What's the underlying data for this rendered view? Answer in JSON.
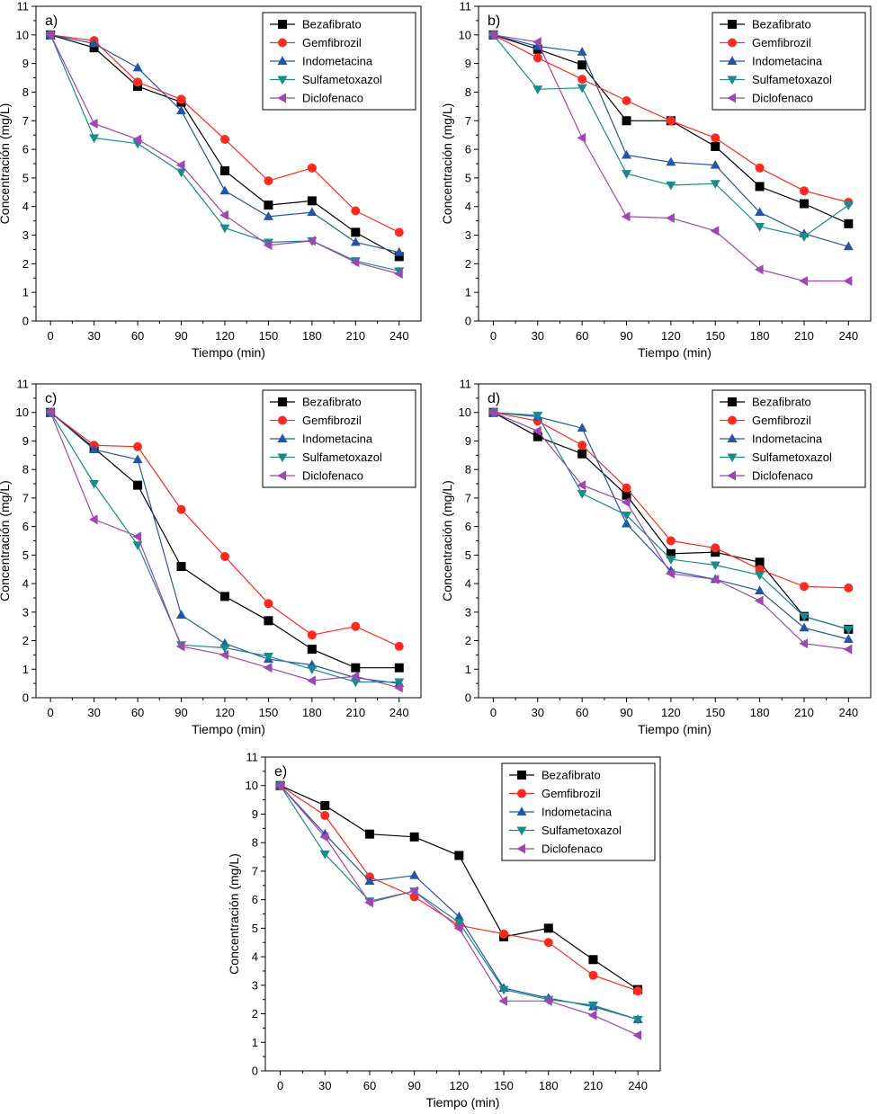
{
  "figure": {
    "panels": [
      "a)",
      "b)",
      "c)",
      "d)",
      "e)"
    ]
  },
  "chart_data": [
    {
      "type": "line",
      "panel_label": "a)",
      "xlabel": "Tiempo (min)",
      "ylabel": "Concentración (mg/L)",
      "x": [
        0,
        30,
        60,
        90,
        120,
        150,
        180,
        210,
        240
      ],
      "xlim": [
        -10,
        255
      ],
      "ylim": [
        0,
        11
      ],
      "xticks": [
        "0",
        "30",
        "60",
        "90",
        "120",
        "150",
        "180",
        "210",
        "240"
      ],
      "yticks": [
        "0",
        "1",
        "2",
        "3",
        "4",
        "5",
        "6",
        "7",
        "8",
        "9",
        "10",
        "11"
      ],
      "legend_position": "top-right",
      "grid": false,
      "series": [
        {
          "name": "Bezafibrato",
          "color": "#000000",
          "marker": "square",
          "values": [
            10.0,
            9.55,
            8.2,
            7.65,
            5.25,
            4.05,
            4.2,
            3.1,
            2.25
          ]
        },
        {
          "name": "Gemfibrozil",
          "color": "#ff2a1f",
          "marker": "circle",
          "values": [
            10.0,
            9.8,
            8.35,
            7.75,
            6.35,
            4.9,
            5.35,
            3.85,
            3.1
          ]
        },
        {
          "name": "Indometacina",
          "color": "#2456a8",
          "marker": "triangle-up",
          "values": [
            10.0,
            9.7,
            8.85,
            7.35,
            4.55,
            3.65,
            3.8,
            2.75,
            2.4
          ]
        },
        {
          "name": "Sulfametoxazol",
          "color": "#1b8a8a",
          "marker": "triangle-down",
          "values": [
            10.0,
            6.4,
            6.2,
            5.2,
            3.25,
            2.75,
            2.8,
            2.1,
            1.75
          ]
        },
        {
          "name": "Diclofenaco",
          "color": "#a045b5",
          "marker": "triangle-left",
          "values": [
            10.0,
            6.9,
            6.35,
            5.45,
            3.7,
            2.65,
            2.8,
            2.05,
            1.65
          ]
        }
      ]
    },
    {
      "type": "line",
      "panel_label": "b)",
      "xlabel": "Tiempo (min)",
      "ylabel": "Concentración (mg/L)",
      "x": [
        0,
        30,
        60,
        90,
        120,
        150,
        180,
        210,
        240
      ],
      "xlim": [
        -10,
        255
      ],
      "ylim": [
        0,
        11
      ],
      "xticks": [
        "0",
        "30",
        "60",
        "90",
        "120",
        "150",
        "180",
        "210",
        "240"
      ],
      "yticks": [
        "0",
        "1",
        "2",
        "3",
        "4",
        "5",
        "6",
        "7",
        "8",
        "9",
        "10",
        "11"
      ],
      "legend_position": "top-right",
      "grid": false,
      "series": [
        {
          "name": "Bezafibrato",
          "color": "#000000",
          "marker": "square",
          "values": [
            10.0,
            9.5,
            8.95,
            7.0,
            7.0,
            6.1,
            4.7,
            4.1,
            3.4
          ]
        },
        {
          "name": "Gemfibrozil",
          "color": "#ff2a1f",
          "marker": "circle",
          "values": [
            10.0,
            9.2,
            8.45,
            7.7,
            7.0,
            6.4,
            5.35,
            4.55,
            4.15
          ]
        },
        {
          "name": "Indometacina",
          "color": "#2456a8",
          "marker": "triangle-up",
          "values": [
            10.0,
            9.6,
            9.4,
            5.8,
            5.55,
            5.45,
            3.8,
            3.05,
            2.6
          ]
        },
        {
          "name": "Sulfametoxazol",
          "color": "#1b8a8a",
          "marker": "triangle-down",
          "values": [
            10.0,
            8.1,
            8.15,
            5.15,
            4.75,
            4.8,
            3.3,
            2.95,
            4.05
          ]
        },
        {
          "name": "Diclofenaco",
          "color": "#a045b5",
          "marker": "triangle-left",
          "values": [
            10.0,
            9.75,
            6.4,
            3.65,
            3.6,
            3.15,
            1.8,
            1.4,
            1.4
          ]
        }
      ]
    },
    {
      "type": "line",
      "panel_label": "c)",
      "xlabel": "Tiempo (min)",
      "ylabel": "Concentración (mg/L)",
      "x": [
        0,
        30,
        60,
        90,
        120,
        150,
        180,
        210,
        240
      ],
      "xlim": [
        -10,
        255
      ],
      "ylim": [
        0,
        11
      ],
      "xticks": [
        "0",
        "30",
        "60",
        "90",
        "120",
        "150",
        "180",
        "210",
        "240"
      ],
      "yticks": [
        "0",
        "1",
        "2",
        "3",
        "4",
        "5",
        "6",
        "7",
        "8",
        "9",
        "10",
        "11"
      ],
      "legend_position": "top-right",
      "grid": false,
      "series": [
        {
          "name": "Bezafibrato",
          "color": "#000000",
          "marker": "square",
          "values": [
            10.0,
            8.75,
            7.45,
            4.6,
            3.55,
            2.7,
            1.7,
            1.05,
            1.05
          ]
        },
        {
          "name": "Gemfibrozil",
          "color": "#ff2a1f",
          "marker": "circle",
          "values": [
            10.0,
            8.85,
            8.8,
            6.6,
            4.95,
            3.3,
            2.2,
            2.5,
            1.8
          ]
        },
        {
          "name": "Indometacina",
          "color": "#2456a8",
          "marker": "triangle-up",
          "values": [
            10.0,
            8.7,
            8.35,
            2.9,
            1.9,
            1.35,
            1.15,
            0.7,
            0.5
          ]
        },
        {
          "name": "Sulfametoxazol",
          "color": "#1b8a8a",
          "marker": "triangle-down",
          "values": [
            10.0,
            7.5,
            5.35,
            1.85,
            1.75,
            1.45,
            1.0,
            0.55,
            0.55
          ]
        },
        {
          "name": "Diclofenaco",
          "color": "#a045b5",
          "marker": "triangle-left",
          "values": [
            10.0,
            6.25,
            5.65,
            1.8,
            1.5,
            1.05,
            0.6,
            0.75,
            0.35
          ]
        }
      ]
    },
    {
      "type": "line",
      "panel_label": "d)",
      "xlabel": "Tiempo (min)",
      "ylabel": "Concentración (mg/L)",
      "x": [
        0,
        30,
        60,
        90,
        120,
        150,
        180,
        210,
        240
      ],
      "xlim": [
        -10,
        255
      ],
      "ylim": [
        0,
        11
      ],
      "xticks": [
        "0",
        "30",
        "60",
        "90",
        "120",
        "150",
        "180",
        "210",
        "240"
      ],
      "yticks": [
        "0",
        "1",
        "2",
        "3",
        "4",
        "5",
        "6",
        "7",
        "8",
        "9",
        "10",
        "11"
      ],
      "legend_position": "top-right",
      "grid": false,
      "series": [
        {
          "name": "Bezafibrato",
          "color": "#000000",
          "marker": "square",
          "values": [
            10.0,
            9.15,
            8.55,
            7.1,
            5.05,
            5.1,
            4.75,
            2.85,
            2.4
          ]
        },
        {
          "name": "Gemfibrozil",
          "color": "#ff2a1f",
          "marker": "circle",
          "values": [
            10.0,
            9.7,
            8.85,
            7.35,
            5.5,
            5.25,
            4.5,
            3.9,
            3.85
          ]
        },
        {
          "name": "Indometacina",
          "color": "#2456a8",
          "marker": "triangle-up",
          "values": [
            10.0,
            9.85,
            9.45,
            6.1,
            4.45,
            4.15,
            3.75,
            2.45,
            2.05
          ]
        },
        {
          "name": "Sulfametoxazol",
          "color": "#1b8a8a",
          "marker": "triangle-down",
          "values": [
            10.0,
            9.9,
            7.15,
            6.4,
            4.85,
            4.65,
            4.3,
            2.85,
            2.4
          ]
        },
        {
          "name": "Diclofenaco",
          "color": "#a045b5",
          "marker": "triangle-left",
          "values": [
            10.0,
            9.35,
            7.45,
            6.85,
            4.35,
            4.15,
            3.4,
            1.9,
            1.7
          ]
        }
      ]
    },
    {
      "type": "line",
      "panel_label": "e)",
      "xlabel": "Tiempo (min)",
      "ylabel": "Concentración (mg/L)",
      "x": [
        0,
        30,
        60,
        90,
        120,
        150,
        180,
        210,
        240
      ],
      "xlim": [
        -10,
        255
      ],
      "ylim": [
        0,
        11
      ],
      "xticks": [
        "0",
        "30",
        "60",
        "90",
        "120",
        "150",
        "180",
        "210",
        "240"
      ],
      "yticks": [
        "0",
        "1",
        "2",
        "3",
        "4",
        "5",
        "6",
        "7",
        "8",
        "9",
        "10",
        "11"
      ],
      "legend_position": "top-right",
      "grid": false,
      "series": [
        {
          "name": "Bezafibrato",
          "color": "#000000",
          "marker": "square",
          "values": [
            10.0,
            9.3,
            8.3,
            8.2,
            7.55,
            4.7,
            5.0,
            3.9,
            2.85
          ]
        },
        {
          "name": "Gemfibrozil",
          "color": "#ff2a1f",
          "marker": "circle",
          "values": [
            10.0,
            8.95,
            6.8,
            6.1,
            5.1,
            4.8,
            4.5,
            3.35,
            2.8
          ]
        },
        {
          "name": "Indometacina",
          "color": "#2456a8",
          "marker": "triangle-up",
          "values": [
            10.0,
            8.3,
            6.65,
            6.85,
            5.4,
            2.9,
            2.55,
            2.25,
            1.8
          ]
        },
        {
          "name": "Sulfametoxazol",
          "color": "#1b8a8a",
          "marker": "triangle-down",
          "values": [
            10.0,
            7.6,
            5.95,
            6.3,
            5.2,
            2.85,
            2.5,
            2.3,
            1.8
          ]
        },
        {
          "name": "Diclofenaco",
          "color": "#a045b5",
          "marker": "triangle-left",
          "values": [
            10.0,
            8.2,
            5.9,
            6.3,
            5.0,
            2.45,
            2.45,
            1.95,
            1.25
          ]
        }
      ]
    }
  ]
}
